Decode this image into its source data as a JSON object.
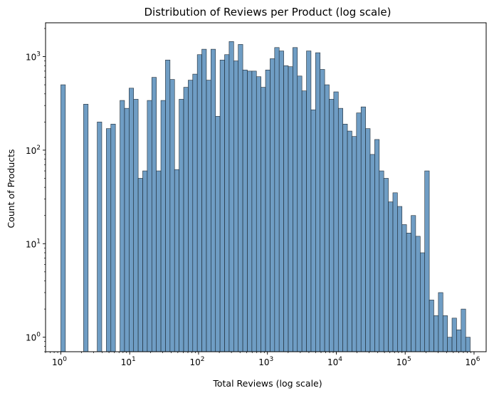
{
  "chart_data": {
    "type": "bar",
    "title": "Distribution of Reviews per Product (log scale)",
    "xlabel": "Total Reviews (log scale)",
    "ylabel": "Count of Products",
    "x_scale": "log",
    "y_scale": "log",
    "xlim": [
      0.6,
      1500000
    ],
    "ylim": [
      0.7,
      2300
    ],
    "grid": false,
    "legend": "none",
    "bar_color": "#4682B4",
    "bar_edge_color": "#1f2a33",
    "x_ticks": [
      {
        "base": "10",
        "exp": "0",
        "value": 1
      },
      {
        "base": "10",
        "exp": "1",
        "value": 10
      },
      {
        "base": "10",
        "exp": "2",
        "value": 100
      },
      {
        "base": "10",
        "exp": "3",
        "value": 1000
      },
      {
        "base": "10",
        "exp": "4",
        "value": 10000
      },
      {
        "base": "10",
        "exp": "5",
        "value": 100000
      },
      {
        "base": "10",
        "exp": "6",
        "value": 1000000
      }
    ],
    "y_ticks": [
      {
        "base": "10",
        "exp": "0",
        "value": 1
      },
      {
        "base": "10",
        "exp": "1",
        "value": 10
      },
      {
        "base": "10",
        "exp": "2",
        "value": 100
      },
      {
        "base": "10",
        "exp": "3",
        "value": 1000
      }
    ],
    "bins": {
      "x_min": 1,
      "x_max": 880000,
      "counts": [
        500,
        0,
        0,
        0,
        0,
        310,
        0,
        0,
        200,
        0,
        170,
        190,
        0,
        340,
        280,
        460,
        350,
        50,
        60,
        340,
        600,
        60,
        340,
        920,
        570,
        62,
        350,
        470,
        560,
        650,
        1050,
        1200,
        560,
        1200,
        230,
        920,
        1050,
        1450,
        900,
        1350,
        720,
        700,
        700,
        610,
        470,
        720,
        950,
        1250,
        1150,
        800,
        780,
        1250,
        620,
        430,
        1150,
        270,
        1100,
        730,
        500,
        350,
        420,
        280,
        190,
        160,
        140,
        250,
        290,
        170,
        90,
        130,
        60,
        50,
        28,
        35,
        25,
        16,
        13,
        20,
        12,
        8,
        60,
        2.5,
        1.7,
        3.0,
        1.7,
        1.0,
        1.6,
        1.2,
        2.0,
        1.0
      ]
    }
  }
}
